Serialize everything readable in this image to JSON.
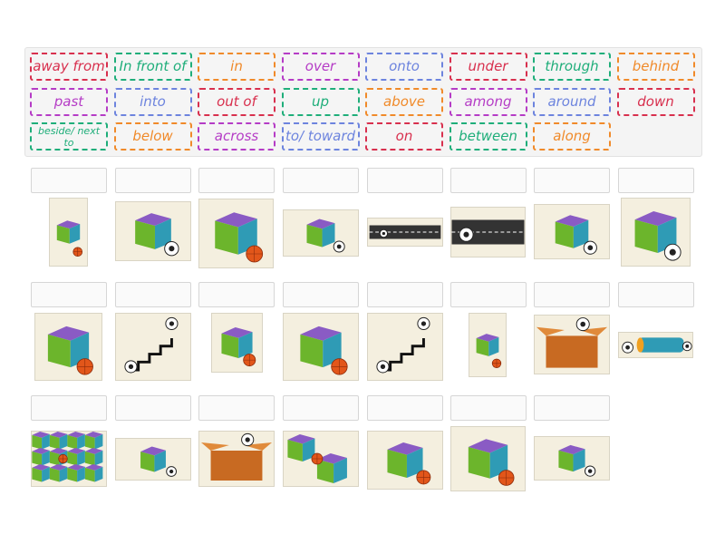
{
  "colors": {
    "red": "#d8304e",
    "green": "#1fae7a",
    "orange": "#f08a2a",
    "purple": "#b53cc6",
    "blue": "#6d84de"
  },
  "word_bank": [
    {
      "label": "away from",
      "color": "red"
    },
    {
      "label": "In front of",
      "color": "green"
    },
    {
      "label": "in",
      "color": "orange"
    },
    {
      "label": "over",
      "color": "purple"
    },
    {
      "label": "onto",
      "color": "blue"
    },
    {
      "label": "under",
      "color": "red"
    },
    {
      "label": "through",
      "color": "green"
    },
    {
      "label": "behind",
      "color": "orange"
    },
    {
      "label": "past",
      "color": "purple"
    },
    {
      "label": "into",
      "color": "blue"
    },
    {
      "label": "out of",
      "color": "red"
    },
    {
      "label": "up",
      "color": "green"
    },
    {
      "label": "above",
      "color": "orange"
    },
    {
      "label": "among",
      "color": "purple"
    },
    {
      "label": "around",
      "color": "blue"
    },
    {
      "label": "down",
      "color": "red"
    },
    {
      "label": "beside/ next to",
      "color": "green"
    },
    {
      "label": "below",
      "color": "orange"
    },
    {
      "label": "across",
      "color": "purple"
    },
    {
      "label": "to/ toward",
      "color": "blue"
    },
    {
      "label": "on",
      "color": "red"
    },
    {
      "label": "between",
      "color": "green"
    },
    {
      "label": "along",
      "color": "orange"
    }
  ],
  "drop_images": [
    "cube-basketball-below",
    "soccer-balls-around-cube",
    "basketball-inside-cube",
    "soccer-ball-toward-cube",
    "soccer-ball-along-road",
    "soccer-ball-across-road",
    "soccer-ball-past-cube",
    "soccer-ball-onto-cube",
    "basketball-on-cube",
    "soccer-ball-up-stairs",
    "basketball-under-cube",
    "basketball-in-front-of-cube",
    "soccer-ball-down-stairs",
    "basketball-above-cube",
    "soccer-ball-out-of-box",
    "soccer-ball-through-tube",
    "basketball-among-cubes",
    "soccer-balls-over-cube",
    "soccer-ball-into-box",
    "basketball-between-cubes",
    "basketball-behind-cube",
    "basketball-beside-cube",
    "soccer-ball-away-from-cube"
  ]
}
